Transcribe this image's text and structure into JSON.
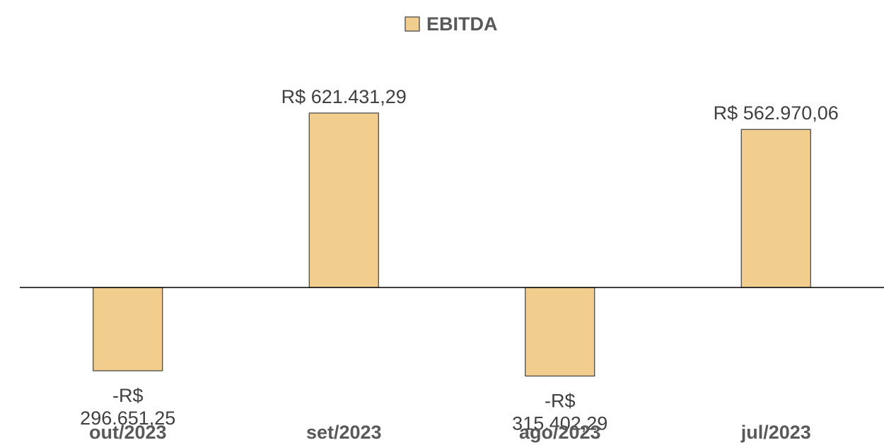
{
  "chart_data": {
    "type": "bar",
    "categories": [
      "out/2023",
      "set/2023",
      "ago/2023",
      "jul/2023"
    ],
    "series": [
      {
        "name": "EBITDA",
        "values": [
          -296651.25,
          621431.29,
          -315402.29,
          562970.06
        ],
        "data_labels": [
          [
            "-R$",
            "296.651,25"
          ],
          [
            "R$ 621.431,29"
          ],
          [
            "-R$",
            "315.402,29"
          ],
          [
            "R$ 562.970,06"
          ]
        ],
        "color": "#F2CE8E"
      }
    ],
    "title": "",
    "xlabel": "",
    "ylabel": "",
    "ylim": [
      -350000,
      630000
    ],
    "grid": false,
    "legend_position": "top",
    "bar_edge_color": "#404040",
    "axis_color": "#000000"
  }
}
